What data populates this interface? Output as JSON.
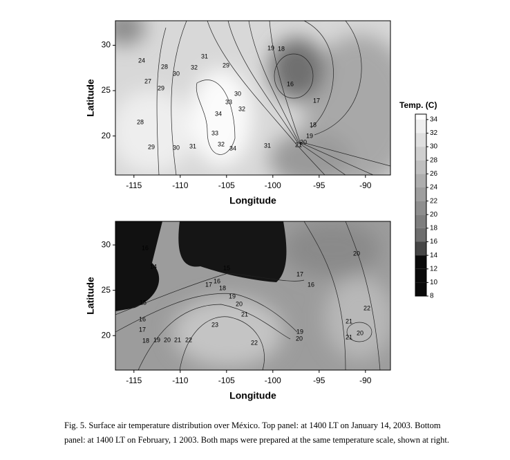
{
  "panels": [
    {
      "x_label": "Longitude",
      "y_label": "Latitude",
      "xlim": [
        -117,
        -87.3
      ],
      "ylim": [
        15.7,
        32.7
      ],
      "xticks": [
        -115,
        -110,
        -105,
        -100,
        -95,
        -90
      ],
      "yticks": [
        20,
        25,
        30
      ],
      "contour_labels": [
        24,
        28,
        27,
        29,
        30,
        31,
        32,
        29,
        30,
        33,
        34,
        32,
        33,
        32,
        34,
        31,
        30,
        29,
        28,
        31,
        19,
        18,
        16,
        17,
        18,
        19,
        20,
        21
      ]
    },
    {
      "x_label": "Longitude",
      "y_label": "Latitude",
      "xlim": [
        -117,
        -87.3
      ],
      "ylim": [
        16.2,
        32.6
      ],
      "xticks": [
        -115,
        -110,
        -105,
        -100,
        -95,
        -90
      ],
      "yticks": [
        20,
        25,
        30
      ],
      "contour_labels": [
        16,
        14,
        15,
        16,
        17,
        18,
        19,
        20,
        21,
        22,
        23,
        22,
        17,
        16,
        15,
        18,
        19,
        20,
        21,
        17,
        16,
        20,
        22,
        21,
        20,
        21,
        19,
        20
      ]
    }
  ],
  "colorbar": {
    "title": "Temp. (C)",
    "lim": [
      8,
      34.8
    ],
    "ticks": [
      34,
      32,
      30,
      28,
      26,
      24,
      22,
      20,
      18,
      16,
      14,
      12,
      10,
      8
    ]
  },
  "caption": [
    "Fig. 5. Surface air temperature distribution over México. Top panel:  at 1400 LT on January 14,  2003. Bottom",
    "panel: at 1400 LT on February, 1  2003. Both maps were prepared at the same temperature scale, shown at right."
  ]
}
